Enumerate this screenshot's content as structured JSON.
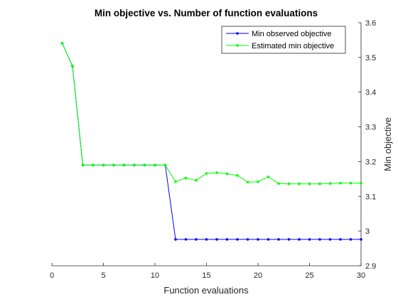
{
  "chart_data": {
    "type": "line",
    "title": "Min objective vs. Number of function evaluations",
    "xlabel": "Function evaluations",
    "ylabel": "Min objective",
    "xlim": [
      0,
      30
    ],
    "ylim": [
      2.9,
      3.6
    ],
    "xticks": [
      0,
      5,
      10,
      15,
      20,
      25,
      30
    ],
    "yticks": [
      2.9,
      3.0,
      3.1,
      3.2,
      3.3,
      3.4,
      3.5,
      3.6
    ],
    "xtick_labels": [
      "0",
      "5",
      "10",
      "15",
      "20",
      "25",
      "30"
    ],
    "ytick_labels": [
      "2.9",
      "3",
      "3.1",
      "3.2",
      "3.3",
      "3.4",
      "3.5",
      "3.6"
    ],
    "y_axis_side": "right",
    "grid": false,
    "legend_position": "top-right",
    "x": [
      1,
      2,
      3,
      4,
      5,
      6,
      7,
      8,
      9,
      10,
      11,
      12,
      13,
      14,
      15,
      16,
      17,
      18,
      19,
      20,
      21,
      22,
      23,
      24,
      25,
      26,
      27,
      28,
      29,
      30
    ],
    "series": [
      {
        "name": "Min observed objective",
        "color": "#0000ff",
        "values": [
          3.541,
          3.475,
          3.19,
          3.19,
          3.19,
          3.19,
          3.19,
          3.19,
          3.19,
          3.19,
          3.19,
          2.976,
          2.976,
          2.976,
          2.976,
          2.976,
          2.976,
          2.976,
          2.976,
          2.976,
          2.976,
          2.976,
          2.976,
          2.976,
          2.976,
          2.976,
          2.976,
          2.976,
          2.976,
          2.976
        ]
      },
      {
        "name": "Estimated min objective",
        "color": "#00ff00",
        "values": [
          3.541,
          3.475,
          3.19,
          3.19,
          3.19,
          3.19,
          3.19,
          3.19,
          3.19,
          3.19,
          3.19,
          3.142,
          3.153,
          3.146,
          3.166,
          3.168,
          3.165,
          3.16,
          3.141,
          3.142,
          3.156,
          3.137,
          3.136,
          3.136,
          3.136,
          3.136,
          3.137,
          3.138,
          3.138,
          3.138
        ]
      }
    ]
  }
}
